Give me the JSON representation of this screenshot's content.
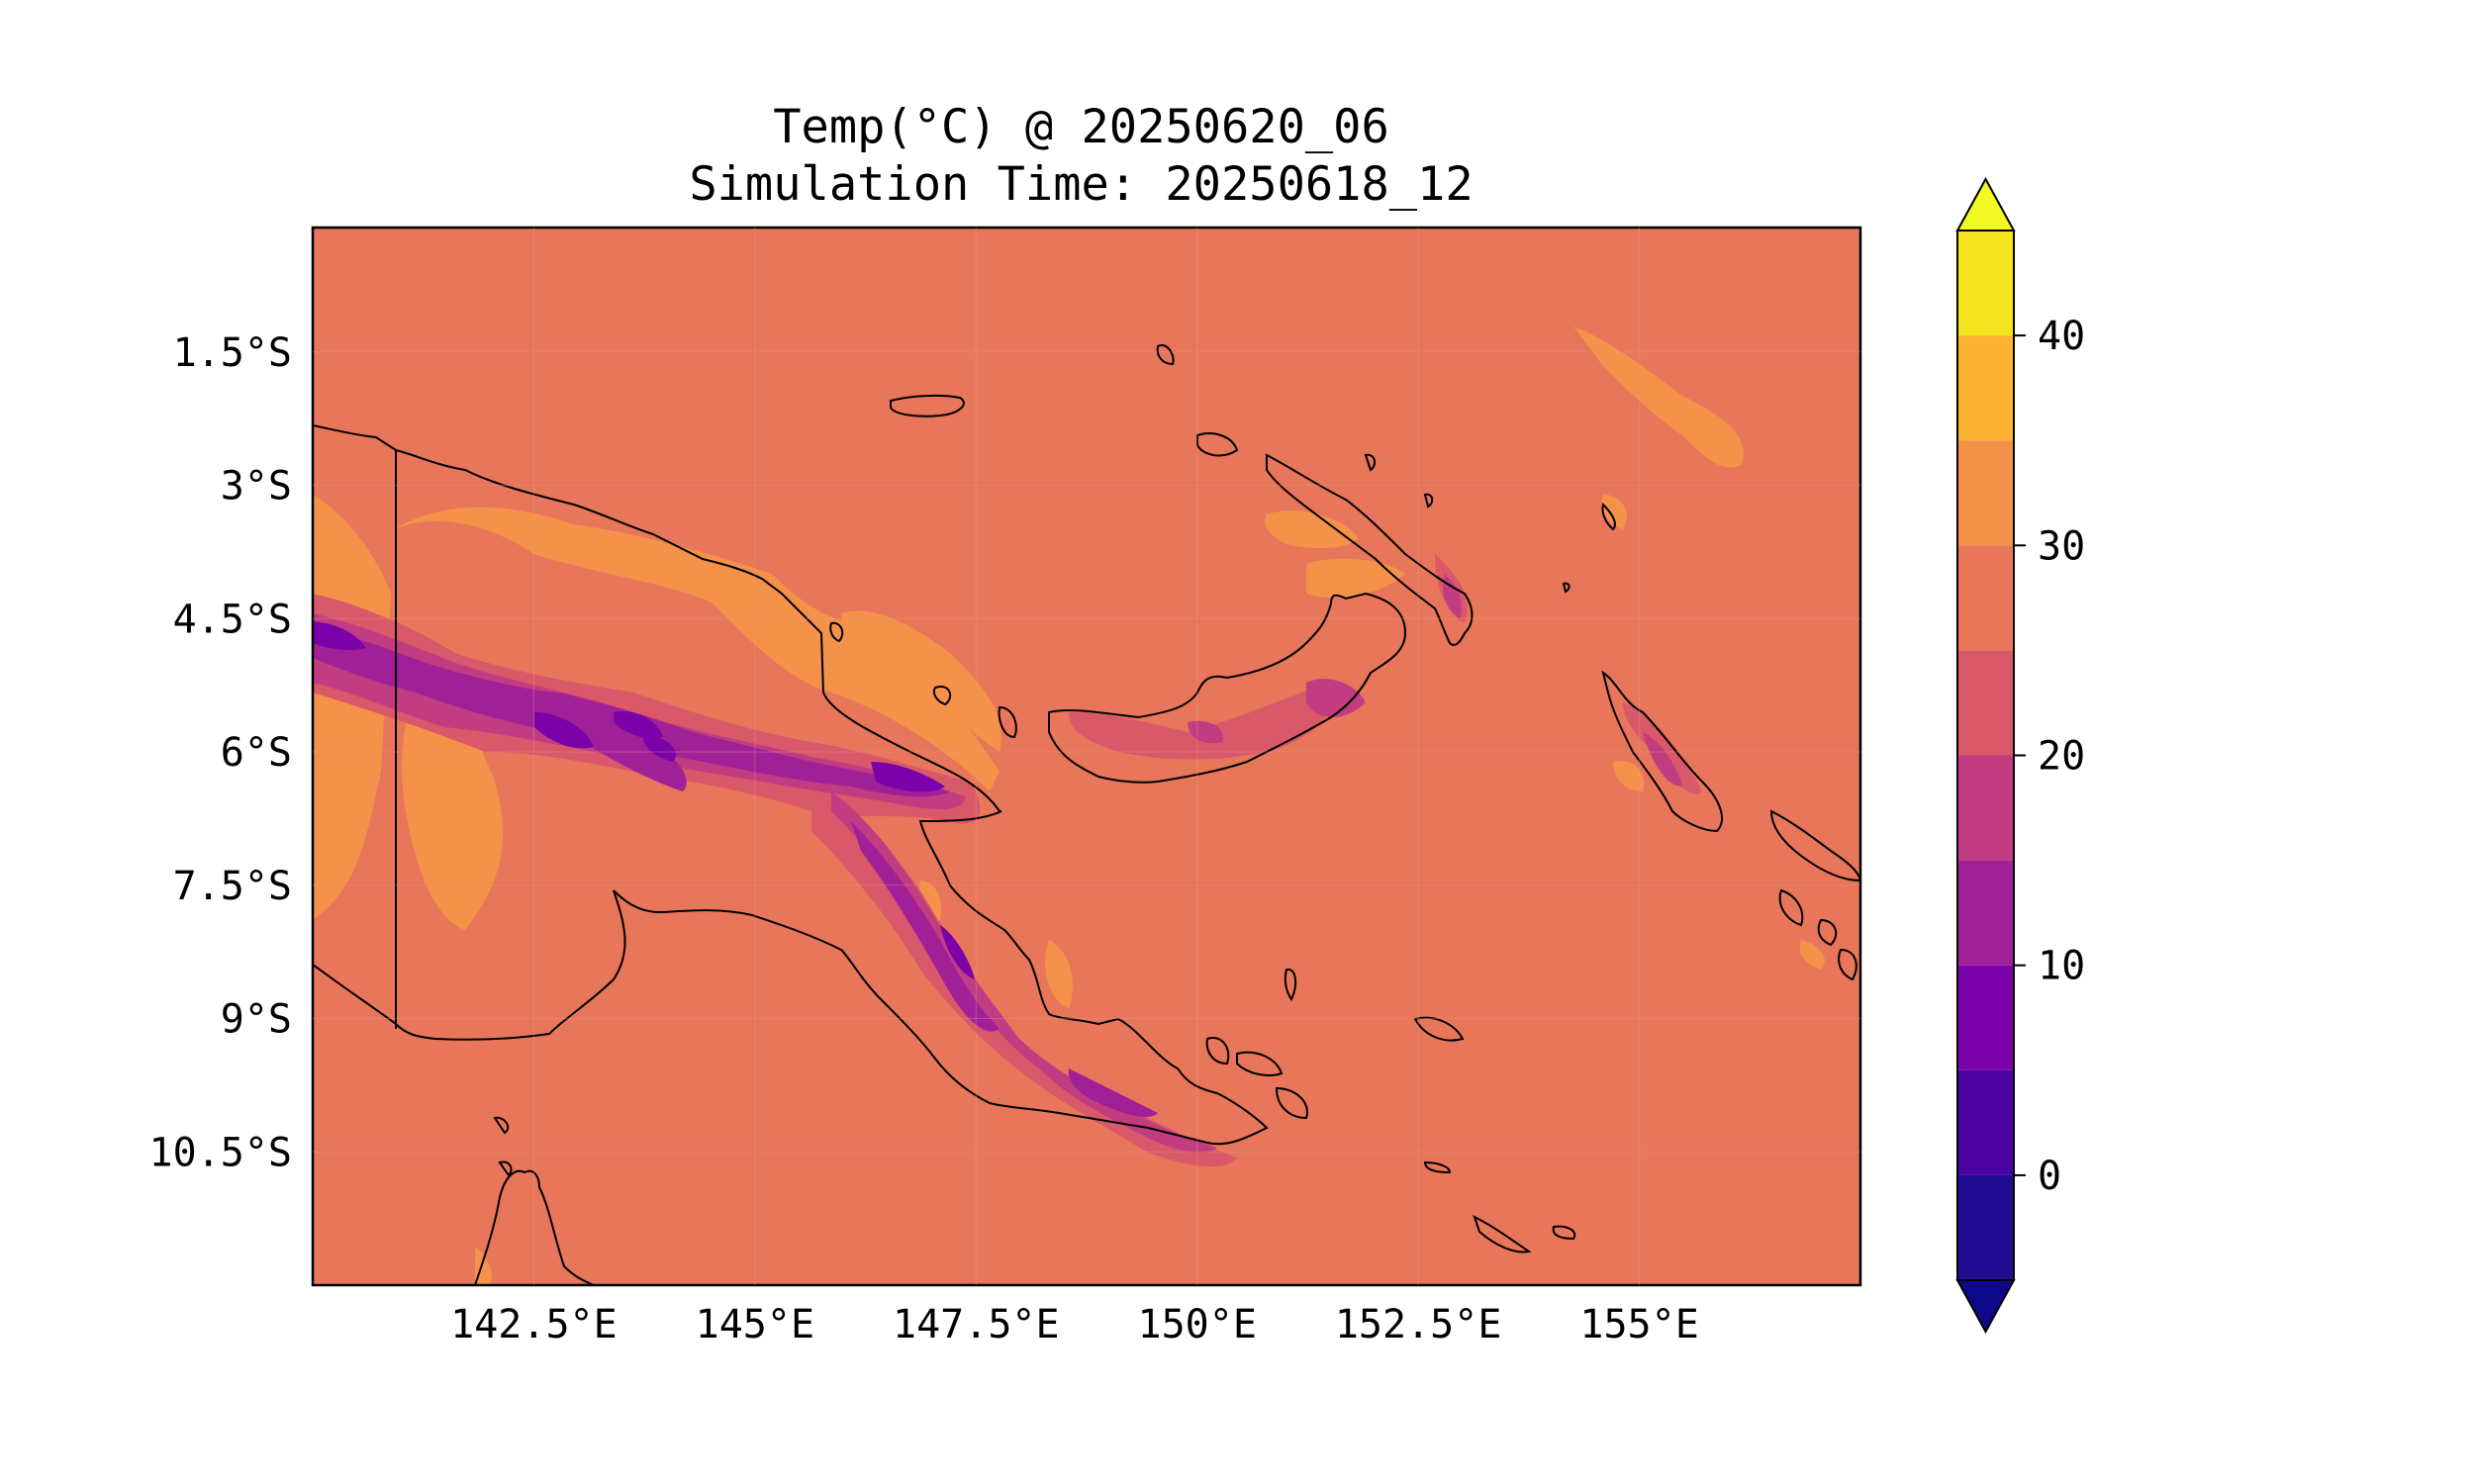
{
  "title": {
    "line1": "Temp(°C) @ 20250620_06",
    "line2": "Simulation Time: 20250618_12"
  },
  "map": {
    "region": "Papua New Guinea",
    "projection": "PlateCarree",
    "lon_range": [
      140.0,
      157.5
    ],
    "lat_range": [
      -12.0,
      -0.1
    ],
    "x_ticks": [
      "142.5°E",
      "145°E",
      "147.5°E",
      "150°E",
      "152.5°E",
      "155°E"
    ],
    "y_ticks": [
      "1.5°S",
      "3°S",
      "4.5°S",
      "6°S",
      "7.5°S",
      "9°S",
      "10.5°S"
    ],
    "field": "Temperature (°C)",
    "background_color": "#e8765a"
  },
  "colorbar": {
    "ticks": [
      "0",
      "10",
      "20",
      "30",
      "40"
    ],
    "levels": [
      -5,
      0,
      5,
      10,
      15,
      20,
      25,
      30,
      35,
      40,
      45
    ],
    "colors": [
      "#220c91",
      "#4a02a1",
      "#7b02a9",
      "#a02197",
      "#c23c81",
      "#d9586a",
      "#e8765a",
      "#f5924a",
      "#fdb431",
      "#f2e51d"
    ],
    "extend_under_color": "#0d0887",
    "extend_over_color": "#f0f921"
  }
}
